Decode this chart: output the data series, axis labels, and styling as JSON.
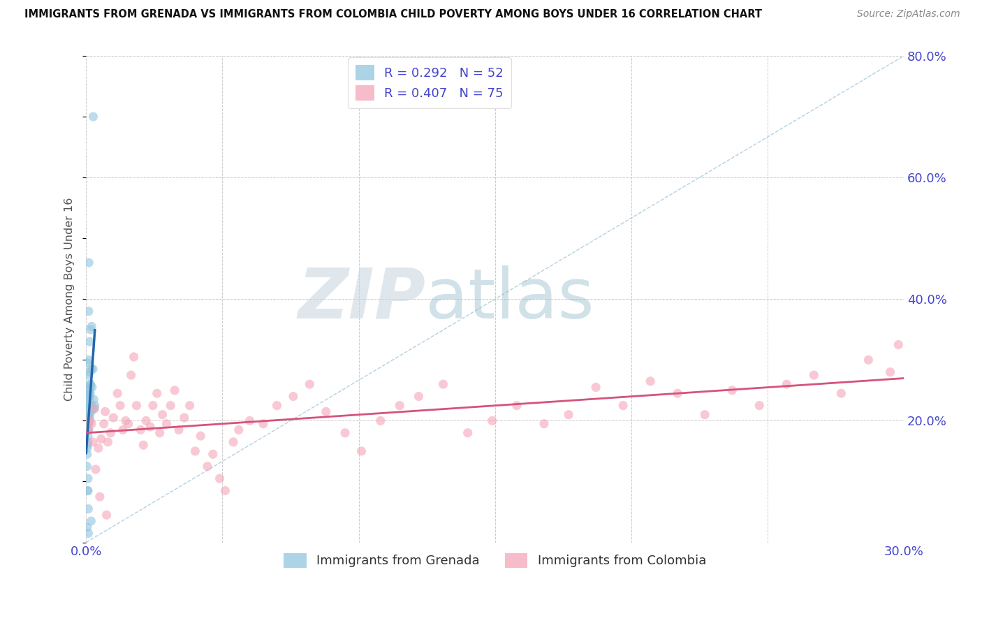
{
  "title": "IMMIGRANTS FROM GRENADA VS IMMIGRANTS FROM COLOMBIA CHILD POVERTY AMONG BOYS UNDER 16 CORRELATION CHART",
  "source": "Source: ZipAtlas.com",
  "ylabel": "Child Poverty Among Boys Under 16",
  "xlim": [
    0.0,
    0.3
  ],
  "ylim": [
    0.0,
    0.8
  ],
  "xticks": [
    0.0,
    0.05,
    0.1,
    0.15,
    0.2,
    0.25,
    0.3
  ],
  "xticklabels": [
    "0.0%",
    "",
    "",
    "",
    "",
    "",
    "30.0%"
  ],
  "yticks_right": [
    0.0,
    0.2,
    0.4,
    0.6,
    0.8
  ],
  "yticklabels_right": [
    "",
    "20.0%",
    "40.0%",
    "60.0%",
    "80.0%"
  ],
  "grenada_R": 0.292,
  "grenada_N": 52,
  "colombia_R": 0.407,
  "colombia_N": 75,
  "grenada_color": "#92c5de",
  "colombia_color": "#f4a6b8",
  "grenada_line_color": "#2166ac",
  "colombia_line_color": "#d6537a",
  "ref_line_color": "#aaccdd",
  "watermark_zip_color": "#c8d4dc",
  "watermark_atlas_color": "#aac8dc",
  "background_color": "#ffffff",
  "grid_color": "#cccccc",
  "axis_label_color": "#4444cc",
  "title_color": "#111111",
  "source_color": "#888888",
  "grenada_x": [
    0.0008,
    0.0012,
    0.0005,
    0.0015,
    0.001,
    0.0006,
    0.0018,
    0.0009,
    0.0007,
    0.0004,
    0.0011,
    0.0014,
    0.0003,
    0.0009,
    0.0013,
    0.0016,
    0.002,
    0.0008,
    0.0012,
    0.0005,
    0.0007,
    0.0011,
    0.0004,
    0.0009,
    0.0016,
    0.0013,
    0.0019,
    0.0008,
    0.0005,
    0.0022,
    0.0016,
    0.0011,
    0.0025,
    0.0008,
    0.0004,
    0.0012,
    0.0028,
    0.0007,
    0.0015,
    0.0005,
    0.0018,
    0.001,
    0.0022,
    0.0008,
    0.0026,
    0.0004,
    0.001,
    0.0007,
    0.0015,
    0.003,
    0.0032,
    0.0008
  ],
  "grenada_y": [
    0.22,
    0.24,
    0.185,
    0.26,
    0.195,
    0.23,
    0.215,
    0.2,
    0.175,
    0.155,
    0.245,
    0.28,
    0.125,
    0.3,
    0.33,
    0.35,
    0.355,
    0.275,
    0.225,
    0.085,
    0.105,
    0.205,
    0.145,
    0.38,
    0.26,
    0.235,
    0.285,
    0.185,
    0.16,
    0.255,
    0.225,
    0.205,
    0.285,
    0.055,
    0.025,
    0.21,
    0.235,
    0.165,
    0.255,
    0.195,
    0.035,
    0.46,
    0.22,
    0.215,
    0.7,
    0.295,
    0.25,
    0.085,
    0.245,
    0.22,
    0.225,
    0.015
  ],
  "colombia_x": [
    0.001,
    0.002,
    0.003,
    0.0045,
    0.0055,
    0.0065,
    0.007,
    0.008,
    0.009,
    0.01,
    0.0115,
    0.0125,
    0.0135,
    0.0145,
    0.0155,
    0.0165,
    0.0175,
    0.0185,
    0.02,
    0.021,
    0.022,
    0.0235,
    0.0245,
    0.026,
    0.027,
    0.028,
    0.0295,
    0.031,
    0.0325,
    0.034,
    0.036,
    0.038,
    0.04,
    0.042,
    0.0445,
    0.0465,
    0.049,
    0.051,
    0.054,
    0.056,
    0.06,
    0.065,
    0.07,
    0.076,
    0.082,
    0.088,
    0.095,
    0.101,
    0.108,
    0.115,
    0.122,
    0.131,
    0.14,
    0.149,
    0.158,
    0.168,
    0.177,
    0.187,
    0.197,
    0.207,
    0.217,
    0.227,
    0.237,
    0.247,
    0.257,
    0.267,
    0.277,
    0.287,
    0.295,
    0.298,
    0.0015,
    0.0025,
    0.0035,
    0.005,
    0.0075
  ],
  "colombia_y": [
    0.185,
    0.195,
    0.22,
    0.155,
    0.17,
    0.195,
    0.215,
    0.165,
    0.18,
    0.205,
    0.245,
    0.225,
    0.185,
    0.2,
    0.195,
    0.275,
    0.305,
    0.225,
    0.185,
    0.16,
    0.2,
    0.19,
    0.225,
    0.245,
    0.18,
    0.21,
    0.195,
    0.225,
    0.25,
    0.185,
    0.205,
    0.225,
    0.15,
    0.175,
    0.125,
    0.145,
    0.105,
    0.085,
    0.165,
    0.185,
    0.2,
    0.195,
    0.225,
    0.24,
    0.26,
    0.215,
    0.18,
    0.15,
    0.2,
    0.225,
    0.24,
    0.26,
    0.18,
    0.2,
    0.225,
    0.195,
    0.21,
    0.255,
    0.225,
    0.265,
    0.245,
    0.21,
    0.25,
    0.225,
    0.26,
    0.275,
    0.245,
    0.3,
    0.28,
    0.325,
    0.2,
    0.165,
    0.12,
    0.075,
    0.045
  ]
}
